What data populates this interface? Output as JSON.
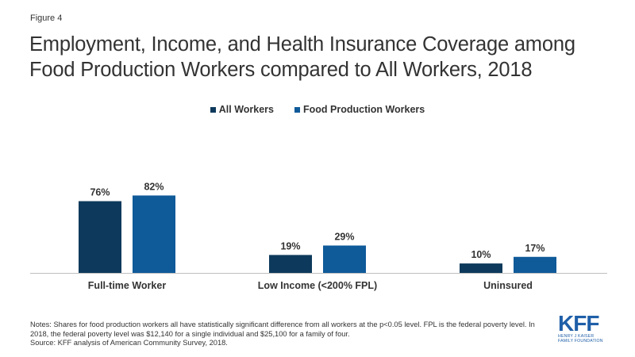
{
  "figure_label": "Figure 4",
  "title": "Employment, Income, and Health Insurance Coverage among Food Production Workers compared to All Workers, 2018",
  "colors": {
    "all_workers": "#0d3a5c",
    "food_production_workers": "#0f5a99",
    "baseline": "#bfbfbf"
  },
  "chart_data": {
    "type": "bar",
    "categories": [
      "Full-time Worker",
      "Low Income (<200% FPL)",
      "Uninsured"
    ],
    "series": [
      {
        "name": "All Workers",
        "values": [
          76,
          19,
          10
        ],
        "labels": [
          "76%",
          "19%",
          "10%"
        ]
      },
      {
        "name": "Food Production Workers",
        "values": [
          82,
          29,
          17
        ],
        "labels": [
          "82%",
          "29%",
          "17%"
        ]
      }
    ],
    "ylim": [
      0,
      100
    ],
    "legend": "top-center",
    "grid": false
  },
  "notes": {
    "line1": "Notes: Shares for food production workers all have statistically significant difference from all workers at the p<0.05 level. FPL is the federal poverty level. In 2018, the federal poverty level was $12,140 for a single individual and $25,100 for a family of four.",
    "source": "Source: KFF analysis of American Community Survey, 2018."
  },
  "logo": {
    "word": "KFF",
    "sub1": "HENRY J KAISER",
    "sub2": "FAMILY FOUNDATION"
  }
}
